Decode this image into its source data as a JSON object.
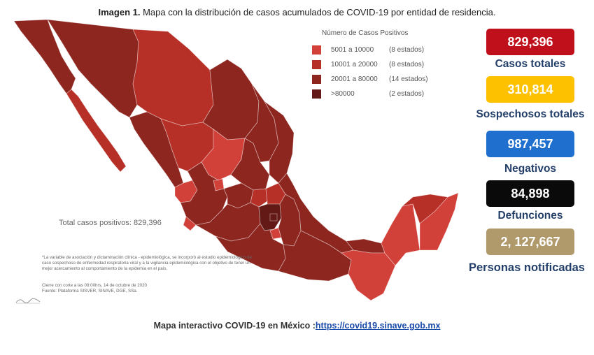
{
  "header": {
    "title_bold": "Imagen 1.",
    "title_text": " Mapa con la distribución de casos acumulados de COVID-19 por entidad de residencia."
  },
  "legend": {
    "title": "Número de Casos Positivos",
    "items": [
      {
        "range": "5001 a 10000",
        "count": "(8 estados)",
        "color": "#d2403a"
      },
      {
        "range": "10001 a 20000",
        "count": "(8 estados)",
        "color": "#b73027"
      },
      {
        "range": "20001 a 80000",
        "count": "(14 estados)",
        "color": "#8e2620"
      },
      {
        "range": ">80000",
        "count": "(2 estados)",
        "color": "#631a16"
      }
    ]
  },
  "map": {
    "total_label": "Total casos positivos: 829,396",
    "note": "*La variable de asociación y dictaminación clínica - epidemiológica, se incorporó al estudio epidemiológico de caso sospechoso de enfermedad respiratoria viral y a la vigilancia epidemiológica con el objetivo de tener un mejor acercamiento al comportamiento de la epidemia en el país.",
    "cutoff": "Cierre con corte a las 09:00hrs, 14 de octubre de 2020",
    "source": "Fuente: Plataforma SISVER, SINAVE, DGE, SSa.",
    "logo_icon": "wave-logo-icon"
  },
  "stats": [
    {
      "value": "829,396",
      "label": "Casos totales",
      "color": "#c0101b"
    },
    {
      "value": "310,814",
      "label": "Sospechosos totales",
      "color": "#fec100"
    },
    {
      "value": "987,457",
      "label": "Negativos",
      "color": "#1f6fce"
    },
    {
      "value": "84,898",
      "label": "Defunciones",
      "color": "#0a0a0a"
    },
    {
      "value": "2, 127,667",
      "label": "Personas notificadas",
      "color": "#b09a6b"
    }
  ],
  "footer": {
    "text": "Mapa interactivo COVID-19 en México :",
    "link": "https://covid19.sinave.gob.mx"
  }
}
